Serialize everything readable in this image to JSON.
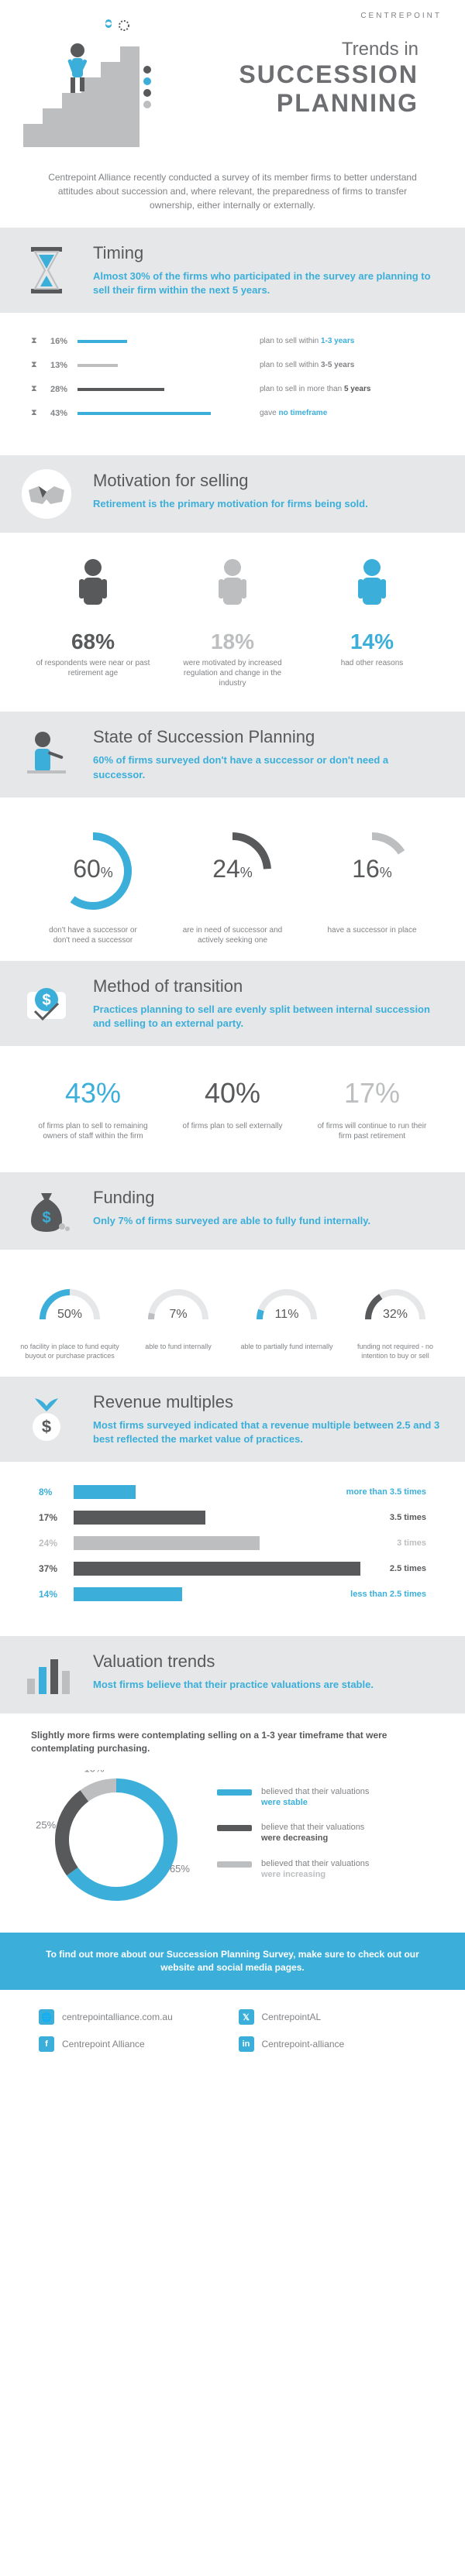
{
  "brand": "CENTREPOINT",
  "title": {
    "line1": "Trends in",
    "line2": "SUCCESSION",
    "line3": "PLANNING"
  },
  "colors": {
    "teal": "#3bafda",
    "teal_dark": "#2a9cc7",
    "grey_dark": "#58595b",
    "grey_mid": "#808285",
    "grey_light": "#bcbec0",
    "grey_bg": "#e6e7e8"
  },
  "intro": "Centrepoint Alliance recently conducted a survey of its member firms to better understand attitudes about succession and, where relevant, the preparedness of firms to transfer ownership, either internally or externally.",
  "timing": {
    "heading": "Timing",
    "lead": "Almost 30% of the firms who participated in the survey are planning to sell their firm within the next 5 years.",
    "rows": [
      {
        "pct": "16%",
        "width": 16,
        "color": "#3bafda",
        "label": "plan to sell within ",
        "em": "1-3 years",
        "em_color": "#3bafda"
      },
      {
        "pct": "13%",
        "width": 13,
        "color": "#bcbec0",
        "label": "plan to sell within ",
        "em": "3-5 years",
        "em_color": "#808285"
      },
      {
        "pct": "28%",
        "width": 28,
        "color": "#58595b",
        "label": "plan to sell in more than ",
        "em": "5 years",
        "em_color": "#58595b"
      },
      {
        "pct": "43%",
        "width": 43,
        "color": "#3bafda",
        "label": "gave ",
        "em": "no timeframe",
        "em_color": "#3bafda"
      }
    ]
  },
  "motivation": {
    "heading": "Motivation for selling",
    "lead": "Retirement is the primary motivation for firms being sold.",
    "items": [
      {
        "pct": "68%",
        "color": "#58595b",
        "desc": "of respondents were near or past retirement age",
        "fig_color": "#58595b"
      },
      {
        "pct": "18%",
        "color": "#bcbec0",
        "desc": "were motivated by increased regulation and change in the industry",
        "fig_color": "#bcbec0"
      },
      {
        "pct": "14%",
        "color": "#3bafda",
        "desc": "had other reasons",
        "fig_color": "#3bafda"
      }
    ]
  },
  "state": {
    "heading": "State of Succession Planning",
    "lead": "60% of firms surveyed don't have a successor or don't need a successor.",
    "arcs": [
      {
        "pct": 60,
        "label": "60",
        "color": "#3bafda",
        "desc": "don't have a successor or don't need a successor"
      },
      {
        "pct": 24,
        "label": "24",
        "color": "#58595b",
        "desc": "are in need of successor and actively seeking one"
      },
      {
        "pct": 16,
        "label": "16",
        "color": "#bcbec0",
        "desc": "have a successor in place"
      }
    ]
  },
  "method": {
    "heading": "Method of transition",
    "lead": "Practices planning to sell are evenly split between internal succession and selling to an external party.",
    "items": [
      {
        "pct": "43%",
        "color": "#3bafda",
        "desc": "of firms plan to sell to remaining owners of staff within the firm"
      },
      {
        "pct": "40%",
        "color": "#58595b",
        "desc": "of firms plan to sell externally"
      },
      {
        "pct": "17%",
        "color": "#bcbec0",
        "desc": "of firms will continue to run their firm past retirement"
      }
    ]
  },
  "funding": {
    "heading": "Funding",
    "lead": "Only 7% of firms surveyed are able to fully fund internally.",
    "items": [
      {
        "pct": 50,
        "label": "50%",
        "color": "#3bafda",
        "desc": "no facility in place to fund equity buyout or purchase practices"
      },
      {
        "pct": 7,
        "label": "7%",
        "color": "#bcbec0",
        "desc": "able to fund internally"
      },
      {
        "pct": 11,
        "label": "11%",
        "color": "#3bafda",
        "desc": "able to partially fund internally"
      },
      {
        "pct": 32,
        "label": "32%",
        "color": "#58595b",
        "desc": "funding not required - no intention to buy or sell"
      }
    ]
  },
  "revenue": {
    "heading": "Revenue multiples",
    "lead": "Most firms surveyed indicated that a revenue multiple between 2.5 and 3 best reflected the market value of practices.",
    "rows": [
      {
        "pct": "8%",
        "width": 8,
        "color": "#3bafda",
        "label": "more than 3.5 times",
        "label_color": "#3bafda"
      },
      {
        "pct": "17%",
        "width": 17,
        "color": "#58595b",
        "label": "3.5 times",
        "label_color": "#58595b"
      },
      {
        "pct": "24%",
        "width": 24,
        "color": "#bcbec0",
        "label": "3 times",
        "label_color": "#bcbec0"
      },
      {
        "pct": "37%",
        "width": 37,
        "color": "#58595b",
        "label": "2.5 times",
        "label_color": "#58595b"
      },
      {
        "pct": "14%",
        "width": 14,
        "color": "#3bafda",
        "label": "less than 2.5 times",
        "label_color": "#3bafda"
      }
    ]
  },
  "valuation": {
    "heading": "Valuation trends",
    "lead": "Most firms believe that their practice valuations are stable.",
    "subhead": "Slightly more firms were contemplating selling on a 1-3 year timeframe that were contemplating purchasing.",
    "donut": [
      {
        "pct": 65,
        "label": "65%",
        "color": "#3bafda"
      },
      {
        "pct": 25,
        "label": "25%",
        "color": "#58595b"
      },
      {
        "pct": 10,
        "label": "10%",
        "color": "#bcbec0"
      }
    ],
    "legend": [
      {
        "color": "#3bafda",
        "text": "believed that their valuations",
        "strong": "were stable"
      },
      {
        "color": "#58595b",
        "text": "believe that their valuations",
        "strong": "were decreasing"
      },
      {
        "color": "#bcbec0",
        "text": "believed that their valuations",
        "strong": "were increasing"
      }
    ]
  },
  "footer": {
    "cta": "To find out more about our Succession Planning Survey, make sure to check out our website and social media pages.",
    "links": [
      {
        "icon": "web-icon",
        "label": "centrepointalliance.com.au"
      },
      {
        "icon": "twitter-icon",
        "label": "CentrepointAL"
      },
      {
        "icon": "facebook-icon",
        "label": "Centrepoint Alliance"
      },
      {
        "icon": "linkedin-icon",
        "label": "Centrepoint-alliance"
      }
    ]
  }
}
